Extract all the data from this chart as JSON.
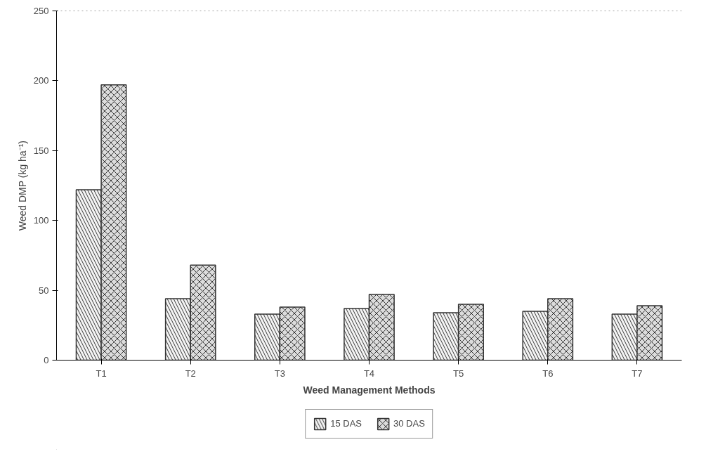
{
  "chart_data": {
    "type": "bar",
    "xlabel": "Weed Management Methods",
    "ylabel": "Weed DMP (kg ha⁻¹)",
    "categories": [
      "T1",
      "T2",
      "T3",
      "T4",
      "T5",
      "T6",
      "T7"
    ],
    "series": [
      {
        "name": "15 DAS",
        "color": "#f4f4f4",
        "values": [
          122,
          44,
          33,
          37,
          34,
          35,
          33
        ]
      },
      {
        "name": "30 DAS",
        "color": "#dcdcdc",
        "values": [
          197,
          68,
          38,
          47,
          40,
          44,
          39
        ]
      }
    ],
    "ylim": [
      0,
      250
    ],
    "yticks": [
      0,
      50,
      100,
      150,
      200,
      250
    ],
    "grid": false,
    "legend": "bottom"
  }
}
